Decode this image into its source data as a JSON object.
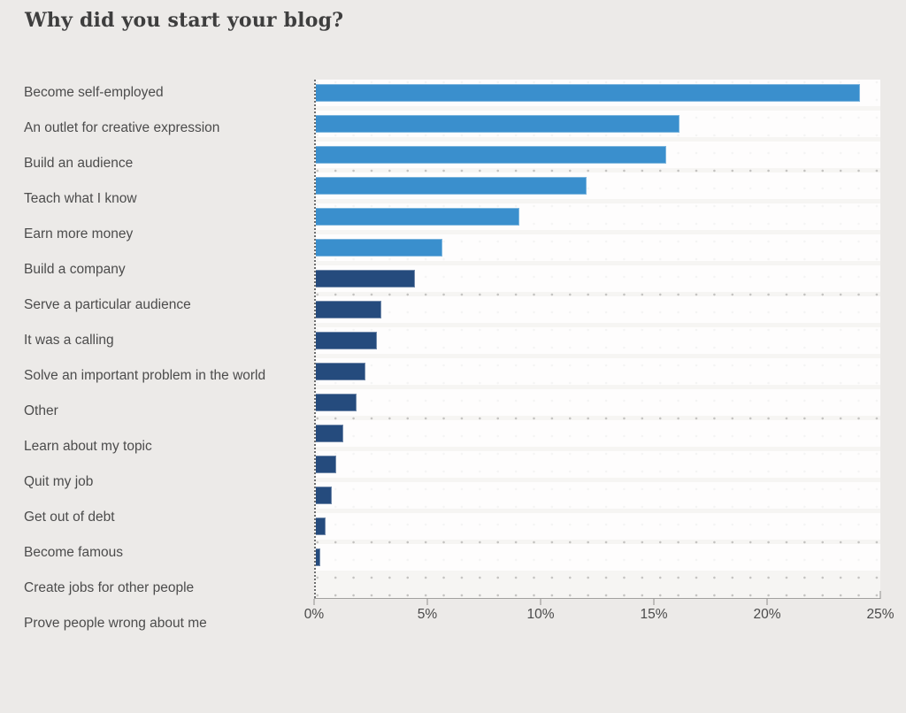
{
  "title": "Why did you start your blog?",
  "chart_data": {
    "type": "bar",
    "orientation": "horizontal",
    "title": "Why did you start your blog?",
    "xlabel": "",
    "ylabel": "",
    "unit": "%",
    "categories": [
      "Become self-employed",
      "An outlet for creative expression",
      "Build an audience",
      "Teach what I know",
      "Earn more money",
      "Build a company",
      "Serve a particular audience",
      "It was a calling",
      "Solve an important problem in the world",
      "Other",
      "Learn about my topic",
      "Quit my job",
      "Get out of debt",
      "Become famous",
      "Create jobs for other people",
      "Prove people wrong about me"
    ],
    "values": [
      24.1,
      16.1,
      15.5,
      12.0,
      9.0,
      5.6,
      4.4,
      2.9,
      2.7,
      2.2,
      1.8,
      1.2,
      0.9,
      0.7,
      0.45,
      0.2
    ],
    "bar_groups": [
      "light",
      "light",
      "light",
      "light",
      "light",
      "light",
      "dark",
      "dark",
      "dark",
      "dark",
      "dark",
      "dark",
      "dark",
      "dark",
      "dark",
      "dark"
    ],
    "colors": {
      "light": "#3a8fcd",
      "dark": "#254b7d"
    },
    "axis": {
      "min": 0,
      "max": 25,
      "tick_values": [
        0,
        5,
        10,
        15,
        20,
        25
      ],
      "tick_labels": [
        "0%",
        "5%",
        "10%",
        "15%",
        "20%",
        "25%"
      ]
    },
    "grid": "dotted",
    "legend_position": "none"
  }
}
